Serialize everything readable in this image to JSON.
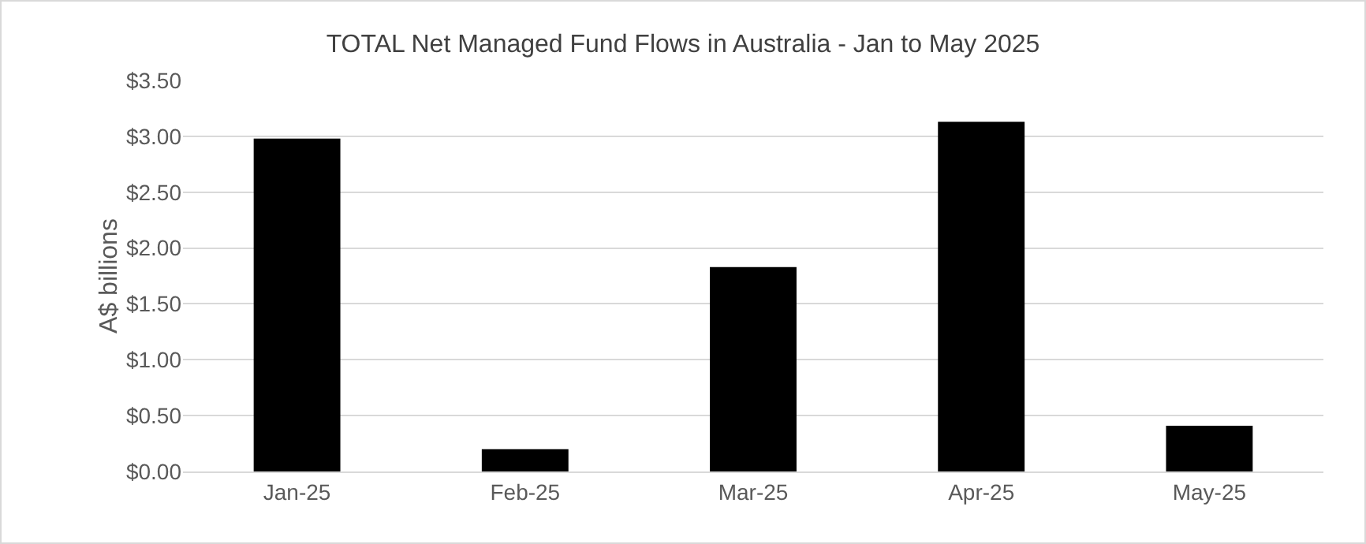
{
  "chart_data": {
    "type": "bar",
    "title": "TOTAL Net Managed Fund Flows in Australia - Jan to May 2025",
    "ylabel": "A$ billions",
    "categories": [
      "Jan-25",
      "Feb-25",
      "Mar-25",
      "Apr-25",
      "May-25"
    ],
    "values": [
      2.98,
      0.2,
      1.83,
      3.13,
      0.41
    ],
    "color": "#000000",
    "ylim": [
      0,
      3.5
    ],
    "yticks": [
      {
        "value": 0,
        "label": "$0.00"
      },
      {
        "value": 0.5,
        "label": "$0.50"
      },
      {
        "value": 1,
        "label": "$1.00"
      },
      {
        "value": 1.5,
        "label": "$1.50"
      },
      {
        "value": 2,
        "label": "$2.00"
      },
      {
        "value": 2.5,
        "label": "$2.50"
      },
      {
        "value": 3,
        "label": "$3.00"
      },
      {
        "value": 3.5,
        "label": "$3.50"
      }
    ],
    "grid": "y",
    "legend": false
  }
}
